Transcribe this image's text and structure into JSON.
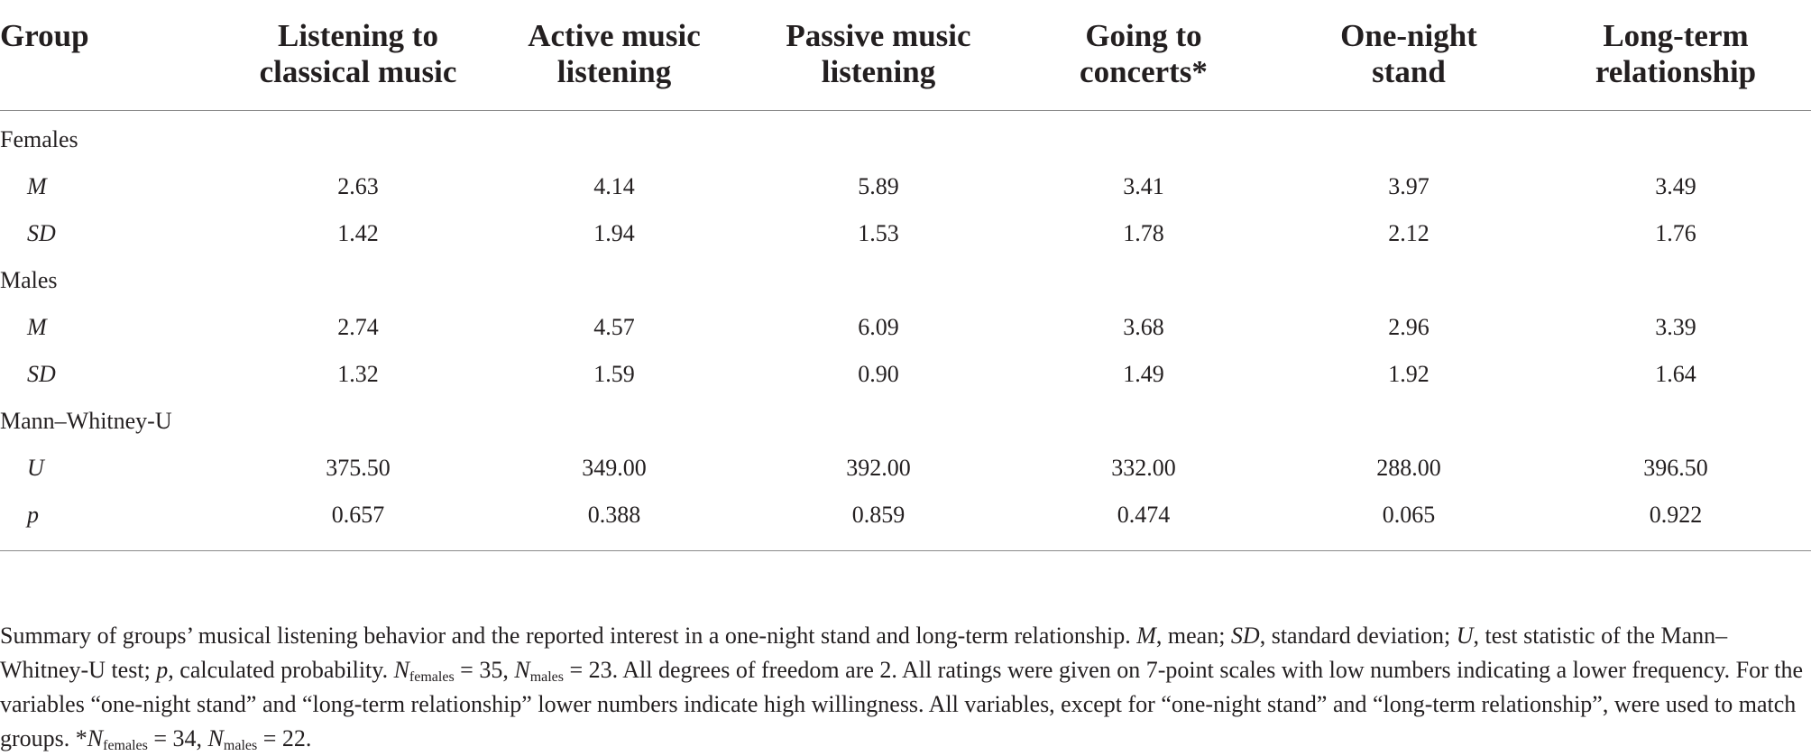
{
  "table": {
    "headers": [
      [
        "Group"
      ],
      [
        "Listening to",
        "classical music"
      ],
      [
        "Active music",
        "listening"
      ],
      [
        "Passive music",
        "listening"
      ],
      [
        "Going to",
        "concerts*"
      ],
      [
        "One-night",
        "stand"
      ],
      [
        "Long-term",
        "relationship"
      ]
    ],
    "sections": [
      {
        "label": "Females",
        "rows": [
          {
            "label": "M",
            "values": [
              "2.63",
              "4.14",
              "5.89",
              "3.41",
              "3.97",
              "3.49"
            ]
          },
          {
            "label": "SD",
            "values": [
              "1.42",
              "1.94",
              "1.53",
              "1.78",
              "2.12",
              "1.76"
            ]
          }
        ]
      },
      {
        "label": "Males",
        "rows": [
          {
            "label": "M",
            "values": [
              "2.74",
              "4.57",
              "6.09",
              "3.68",
              "2.96",
              "3.39"
            ]
          },
          {
            "label": "SD",
            "values": [
              "1.32",
              "1.59",
              "0.90",
              "1.49",
              "1.92",
              "1.64"
            ]
          }
        ]
      },
      {
        "label": "Mann–Whitney-U",
        "rows": [
          {
            "label": "U",
            "values": [
              "375.50",
              "349.00",
              "392.00",
              "332.00",
              "288.00",
              "396.50"
            ]
          },
          {
            "label": "p",
            "values": [
              "0.657",
              "0.388",
              "0.859",
              "0.474",
              "0.065",
              "0.922"
            ]
          }
        ]
      }
    ]
  },
  "caption": {
    "part1": "Summary of groups’ musical listening behavior and the reported interest in a one-night stand and long-term relationship. ",
    "m_sym": "M",
    "m_def": ", mean; ",
    "sd_sym": "SD",
    "sd_def": ", standard deviation; ",
    "u_sym": "U",
    "u_def": ", test statistic of the Mann–Whitney-U test; ",
    "p_sym": "p",
    "p_def": ", calculated probability. ",
    "n_sym": "N",
    "n_fem_sub": "females",
    "n_fem_val": " = 35, ",
    "n_mal_sub": "males",
    "n_mal_val": " = 23. ",
    "part2": "All degrees of freedom are 2. All ratings were given on 7-point scales with low numbers indicating a lower frequency. For the variables “one-night stand” and “long-term relationship” lower numbers indicate high willingness. All variables, except for “one-night stand” and “long-term relationship”, were used to match groups. ",
    "star": "*",
    "n2_fem_val": " = 34, ",
    "n2_mal_val": " = 22."
  }
}
